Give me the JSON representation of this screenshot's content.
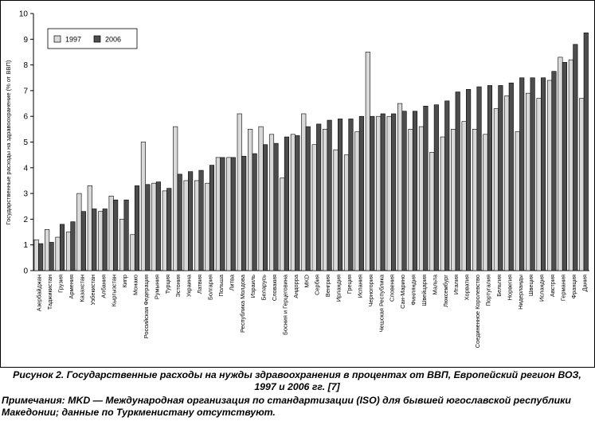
{
  "chart_data": {
    "type": "bar",
    "ylabel": "Государственные расходы на здравоохранение (% от ВВП)",
    "ylim": [
      0,
      10
    ],
    "yticks": [
      0,
      1,
      2,
      3,
      4,
      5,
      6,
      7,
      8,
      9,
      10
    ],
    "grid": false,
    "legend_position": "top-left",
    "categories": [
      "Азербайджан",
      "Таджикистан",
      "Грузия",
      "Армения",
      "Казахстан",
      "Узбекистан",
      "Албания",
      "Кыргызстан",
      "Кипр",
      "Монако",
      "Российская Федерация",
      "Румыния",
      "Турция",
      "Эстония",
      "Украина",
      "Латвия",
      "Болгария",
      "Польша",
      "Литва",
      "Республика Молдова",
      "Израиль",
      "Беларусь",
      "Словакия",
      "Босния и Герцеговина",
      "Андорра",
      "MKD",
      "Сербия",
      "Венгрия",
      "Ирландия",
      "Греция",
      "Испания",
      "Черногория",
      "Чешская Республика",
      "Словения",
      "Сан-Марино",
      "Финляндия",
      "Швейцария",
      "Мальта",
      "Люксембург",
      "Италия",
      "Хорватия",
      "Соединенное Королевство",
      "Португалия",
      "Бельгия",
      "Норвегия",
      "Нидерланды",
      "Швеция",
      "Исландия",
      "Австрия",
      "Германия",
      "Франция",
      "Дания"
    ],
    "series": [
      {
        "name": "1997",
        "color": "#d9d9d9",
        "values": [
          1.2,
          1.6,
          1.3,
          1.5,
          3.0,
          3.3,
          2.3,
          2.9,
          2.0,
          1.4,
          5.0,
          3.4,
          3.1,
          5.6,
          3.5,
          3.5,
          3.4,
          4.4,
          4.4,
          6.1,
          5.5,
          5.6,
          5.3,
          3.6,
          5.3,
          6.1,
          4.9,
          5.5,
          4.7,
          4.5,
          5.4,
          8.5,
          6.0,
          6.0,
          6.5,
          5.5,
          5.6,
          4.6,
          5.2,
          5.5,
          5.8,
          5.5,
          5.3,
          6.3,
          6.8,
          5.4,
          6.9,
          6.7,
          7.4,
          8.3,
          8.2,
          6.7
        ]
      },
      {
        "name": "2006",
        "color": "#4d4d4d",
        "values": [
          1.05,
          1.1,
          1.8,
          1.9,
          2.3,
          2.4,
          2.4,
          2.75,
          2.75,
          3.3,
          3.35,
          3.45,
          3.2,
          3.75,
          3.85,
          3.9,
          4.1,
          4.4,
          4.4,
          4.45,
          4.55,
          4.9,
          4.95,
          5.2,
          5.25,
          5.6,
          5.7,
          5.85,
          5.9,
          5.9,
          6.0,
          6.0,
          6.1,
          6.1,
          6.2,
          6.2,
          6.4,
          6.45,
          6.6,
          6.95,
          7.05,
          7.15,
          7.2,
          7.2,
          7.3,
          7.5,
          7.5,
          7.5,
          7.75,
          8.1,
          8.8,
          9.25
        ]
      }
    ]
  },
  "caption": {
    "title": "Рисунок 2.  Государственные расходы на нужды здравоохранения в процентах от ВВП, Европейский регион ВОЗ, 1997 и 2006 гг. [7]",
    "note": "Примечания: MKD — Международная организация по стандартизации (ISO) для бывшей югославской республики Македонии; данные по Туркменистану отсутствуют."
  }
}
